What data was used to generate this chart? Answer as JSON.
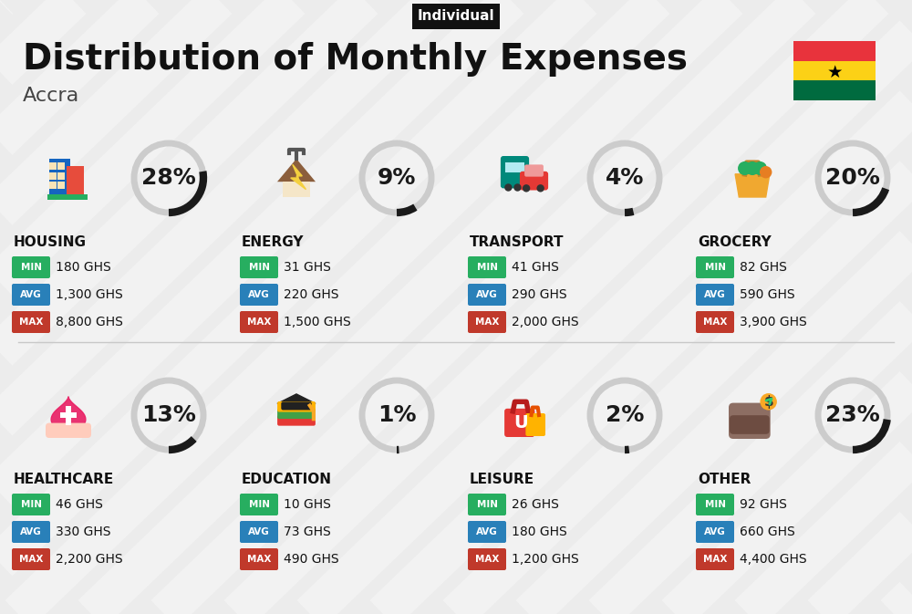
{
  "title": "Distribution of Monthly Expenses",
  "subtitle": "Individual",
  "city": "Accra",
  "bg_color": "#ececec",
  "categories": [
    {
      "name": "HOUSING",
      "percent": 28,
      "min_val": "180 GHS",
      "avg_val": "1,300 GHS",
      "max_val": "8,800 GHS",
      "row": 0,
      "col": 0
    },
    {
      "name": "ENERGY",
      "percent": 9,
      "min_val": "31 GHS",
      "avg_val": "220 GHS",
      "max_val": "1,500 GHS",
      "row": 0,
      "col": 1
    },
    {
      "name": "TRANSPORT",
      "percent": 4,
      "min_val": "41 GHS",
      "avg_val": "290 GHS",
      "max_val": "2,000 GHS",
      "row": 0,
      "col": 2
    },
    {
      "name": "GROCERY",
      "percent": 20,
      "min_val": "82 GHS",
      "avg_val": "590 GHS",
      "max_val": "3,900 GHS",
      "row": 0,
      "col": 3
    },
    {
      "name": "HEALTHCARE",
      "percent": 13,
      "min_val": "46 GHS",
      "avg_val": "330 GHS",
      "max_val": "2,200 GHS",
      "row": 1,
      "col": 0
    },
    {
      "name": "EDUCATION",
      "percent": 1,
      "min_val": "10 GHS",
      "avg_val": "73 GHS",
      "max_val": "490 GHS",
      "row": 1,
      "col": 1
    },
    {
      "name": "LEISURE",
      "percent": 2,
      "min_val": "26 GHS",
      "avg_val": "180 GHS",
      "max_val": "1,200 GHS",
      "row": 1,
      "col": 2
    },
    {
      "name": "OTHER",
      "percent": 23,
      "min_val": "92 GHS",
      "avg_val": "660 GHS",
      "max_val": "4,400 GHS",
      "row": 1,
      "col": 3
    }
  ],
  "color_min": "#27ae60",
  "color_avg": "#2980b9",
  "color_max": "#c0392b",
  "circle_active": "#1a1a1a",
  "circle_inactive": "#cccccc",
  "title_fontsize": 28,
  "subtitle_fontsize": 11,
  "city_fontsize": 16,
  "cat_fontsize": 10,
  "val_fontsize": 10,
  "pct_fontsize": 18
}
